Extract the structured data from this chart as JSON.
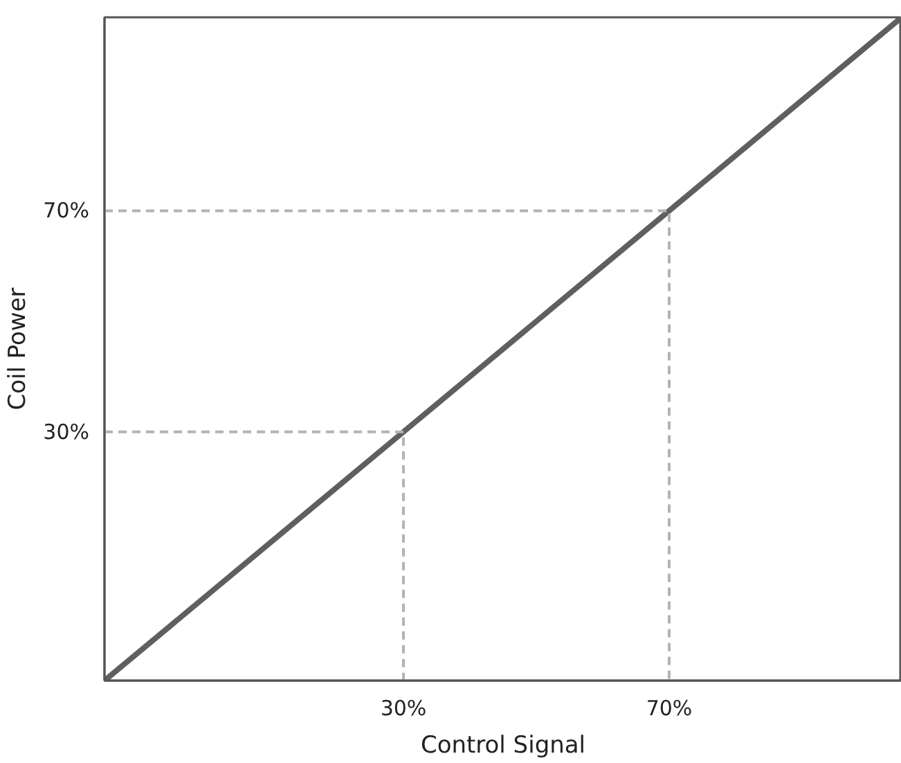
{
  "chart_data": {
    "type": "line",
    "xlabel": "Control Signal",
    "ylabel": "Coil Power",
    "xlim": [
      -15,
      105
    ],
    "ylim": [
      -15,
      105
    ],
    "xticks": [
      {
        "value": 30,
        "label": "30%"
      },
      {
        "value": 70,
        "label": "70%"
      }
    ],
    "yticks": [
      {
        "value": 30,
        "label": "30%"
      },
      {
        "value": 70,
        "label": "70%"
      }
    ],
    "marker": "none",
    "series": [
      {
        "color": "#5f5f5f",
        "x": [
          -15,
          105
        ],
        "values": [
          -15,
          105
        ],
        "line_style": "solid"
      },
      {
        "color": "#b3b3b3",
        "x": [
          -15,
          30,
          30
        ],
        "values": [
          30,
          30,
          -15
        ],
        "line_style": "dashed"
      },
      {
        "color": "#b3b3b3",
        "x": [
          -15,
          70,
          70
        ],
        "values": [
          70,
          70,
          -15
        ],
        "line_style": "dashed"
      }
    ]
  }
}
